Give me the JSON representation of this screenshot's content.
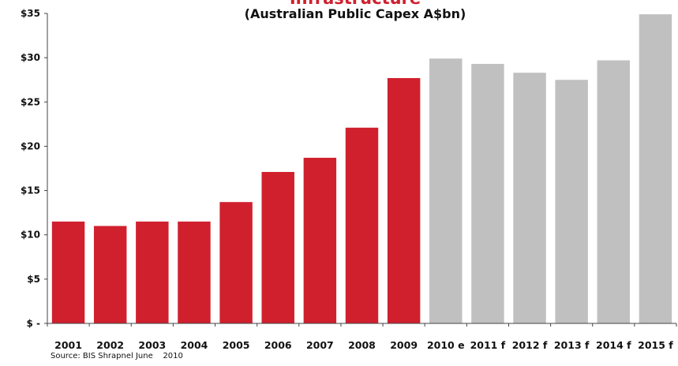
{
  "title": "Infrastructure",
  "subtitle": "(Australian Public Capex A$bn)",
  "source": "Source: BIS Shrapnel June    2010",
  "colors": {
    "actual": "#d0202e",
    "forecast": "#c0c0c0",
    "axis": "#444444"
  },
  "chart_data": {
    "type": "bar",
    "title": "Infrastructure",
    "subtitle": "(Australian Public Capex A$bn)",
    "categories": [
      "2001",
      "2002",
      "2003",
      "2004",
      "2005",
      "2006",
      "2007",
      "2008",
      "2009",
      "2010 e",
      "2011 f",
      "2012 f",
      "2013 f",
      "2014 f",
      "2015 f"
    ],
    "values": [
      11.5,
      11.0,
      11.5,
      11.5,
      13.7,
      17.1,
      18.7,
      22.1,
      27.7,
      29.9,
      29.3,
      28.3,
      27.5,
      29.7,
      34.9
    ],
    "bar_types": [
      "actual",
      "actual",
      "actual",
      "actual",
      "actual",
      "actual",
      "actual",
      "actual",
      "actual",
      "forecast",
      "forecast",
      "forecast",
      "forecast",
      "forecast",
      "forecast"
    ],
    "ylim": [
      0,
      35
    ],
    "yticks": [
      0,
      5,
      10,
      15,
      20,
      25,
      30,
      35
    ],
    "ytick_labels": [
      "$ -",
      "$5",
      "$10",
      "$15",
      "$20",
      "$25",
      "$30",
      "$35"
    ],
    "xlabel": "",
    "ylabel": "",
    "grid": false,
    "legend": "none"
  }
}
